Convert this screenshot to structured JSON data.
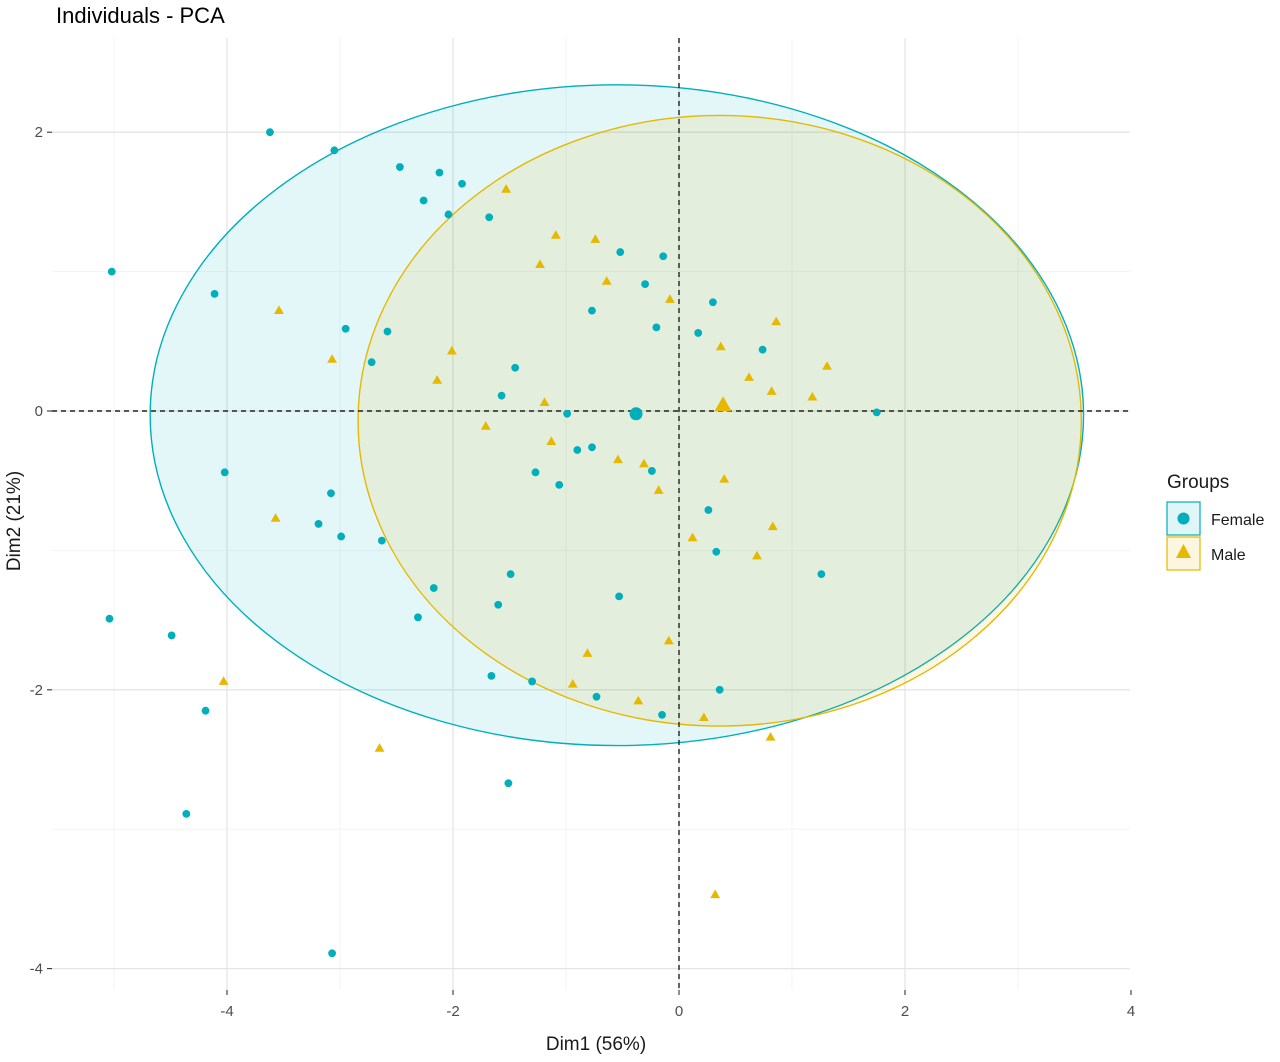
{
  "chart_data": {
    "type": "scatter",
    "title": "Individuals - PCA",
    "xlabel": "Dim1 (56%)",
    "ylabel": "Dim2 (21%)",
    "xlim": [
      -5.1,
      4.0
    ],
    "ylim": [
      -4.2,
      2.7
    ],
    "x_ticks": [
      -4,
      -2,
      0,
      2,
      4
    ],
    "y_ticks": [
      -4,
      -2,
      0,
      2
    ],
    "x_tick_labels": [
      "-4",
      "-2",
      "0",
      "2",
      "4"
    ],
    "y_tick_labels": [
      "-4",
      "-2",
      "0",
      "2"
    ],
    "grid": true,
    "reference_lines": {
      "x": 0,
      "y": 0,
      "style": "dashed"
    },
    "legend": {
      "title": "Groups",
      "position": "right",
      "items": [
        {
          "name": "Female",
          "shape": "circle",
          "color": "#00AFBB"
        },
        {
          "name": "Male",
          "shape": "triangle",
          "color": "#E7B800"
        }
      ]
    },
    "series": [
      {
        "name": "Female",
        "color": "#00AFBB",
        "shape": "circle",
        "x": [
          -3.62,
          -3.05,
          -2.47,
          -2.12,
          -1.92,
          -2.26,
          -2.04,
          -1.68,
          -0.52,
          -0.14,
          -0.3,
          -0.77,
          -0.2,
          0.17,
          0.3,
          0.74,
          -4.11,
          -2.95,
          -2.58,
          -2.72,
          -1.45,
          -1.57,
          -0.99,
          -5.02,
          -4.02,
          -3.08,
          -3.19,
          -2.99,
          -2.63,
          -1.27,
          -0.9,
          -1.06,
          -0.77,
          -0.24,
          0.26,
          0.33,
          1.26,
          1.75,
          -1.49,
          -2.17,
          -2.31,
          -1.6,
          -0.53,
          -5.04,
          -4.49,
          -4.19,
          -1.66,
          -1.3,
          -0.73,
          -0.15,
          0.36,
          -1.51,
          -4.36,
          -3.07,
          -0.38
        ],
        "y": [
          2.0,
          1.87,
          1.75,
          1.71,
          1.63,
          1.51,
          1.41,
          1.39,
          1.14,
          1.11,
          0.91,
          0.72,
          0.6,
          0.56,
          0.78,
          0.44,
          0.84,
          0.59,
          0.57,
          0.35,
          0.31,
          0.11,
          -0.02,
          1.0,
          -0.44,
          -0.59,
          -0.81,
          -0.9,
          -0.93,
          -0.44,
          -0.28,
          -0.53,
          -0.26,
          -0.43,
          -0.71,
          -1.01,
          -1.17,
          -0.01,
          -1.17,
          -1.27,
          -1.48,
          -1.39,
          -1.33,
          -1.49,
          -1.61,
          -2.15,
          -1.9,
          -1.94,
          -2.05,
          -2.18,
          -2.0,
          -2.67,
          -2.89,
          -3.89,
          -0.02
        ]
      },
      {
        "name": "Male",
        "color": "#E7B800",
        "shape": "triangle",
        "x": [
          -1.53,
          -1.09,
          -0.74,
          -1.23,
          -0.64,
          -0.08,
          0.37,
          0.86,
          -3.54,
          -2.01,
          -3.07,
          -2.14,
          0.62,
          1.31,
          0.82,
          1.18,
          -1.19,
          -1.71,
          -1.13,
          -0.54,
          -0.31,
          -0.18,
          0.4,
          0.69,
          0.83,
          -3.57,
          0.12,
          -0.09,
          -0.81,
          -0.94,
          -0.36,
          0.22,
          0.81,
          -4.03,
          -2.65,
          0.32,
          0.39
        ],
        "y": [
          1.59,
          1.26,
          1.23,
          1.05,
          0.93,
          0.8,
          0.46,
          0.64,
          0.72,
          0.43,
          0.37,
          0.22,
          0.24,
          0.32,
          0.14,
          0.1,
          0.06,
          -0.11,
          -0.22,
          -0.35,
          -0.38,
          -0.57,
          -0.49,
          -1.04,
          -0.83,
          -0.77,
          -0.91,
          -1.65,
          -1.74,
          -1.96,
          -2.08,
          -2.2,
          -2.34,
          -1.94,
          -2.42,
          -3.47,
          0.04
        ]
      }
    ],
    "group_means": [
      {
        "group": "Female",
        "x": -0.38,
        "y": -0.02
      },
      {
        "group": "Male",
        "x": 0.39,
        "y": 0.04
      }
    ],
    "ellipses": [
      {
        "group": "Female",
        "cx": -0.55,
        "cy": -0.03,
        "rx": 4.13,
        "ry": 2.37
      },
      {
        "group": "Male",
        "cx": 0.36,
        "cy": -0.07,
        "rx": 3.2,
        "ry": 2.19
      }
    ]
  }
}
